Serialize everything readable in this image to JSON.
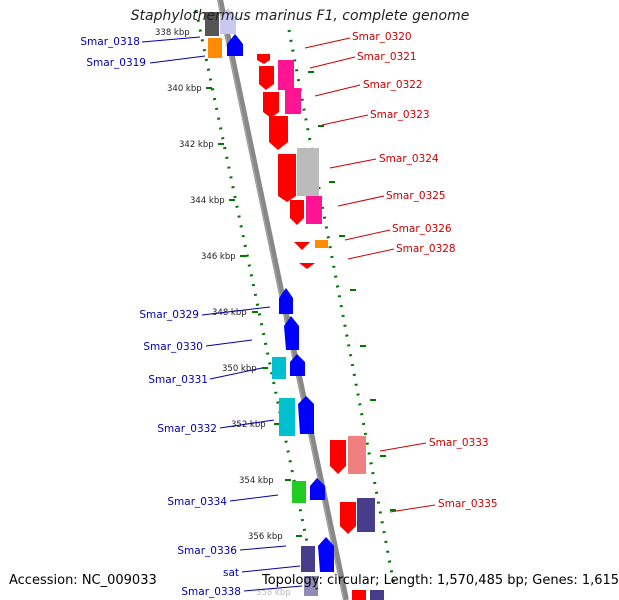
{
  "title": "Staphylothermus marinus F1, complete genome",
  "footer": {
    "accession": "Accession: NC_009033",
    "summary": "Topology: circular; Length: 1,570,485 bp; Genes: 1,615"
  },
  "colors": {
    "red": "#ff0000",
    "magenta": "#ff1493",
    "orange": "#ff8c00",
    "grey": "#bbbbbb",
    "salmon": "#f08080",
    "blue": "#0000ff",
    "cyan": "#00c0d0",
    "green": "#22cc22",
    "slate": "#483d8b",
    "lightblue": "#c8c8f0",
    "darkgrey": "#555555",
    "backbone": "#888888",
    "ruler": "#007700",
    "label_forward": "#cc0000",
    "label_reverse": "#0000aa"
  },
  "ticks": [
    "338 kbp",
    "340 kbp",
    "342 kbp",
    "344 kbp",
    "346 kbp",
    "348 kbp",
    "350 kbp",
    "352 kbp",
    "354 kbp",
    "356 kbp",
    "358 kbp"
  ],
  "genes_forward": [
    {
      "label": "Smar_0320"
    },
    {
      "label": "Smar_0321"
    },
    {
      "label": "Smar_0322"
    },
    {
      "label": "Smar_0323"
    },
    {
      "label": "Smar_0324"
    },
    {
      "label": "Smar_0325"
    },
    {
      "label": "Smar_0326"
    },
    {
      "label": "Smar_0328"
    },
    {
      "label": "Smar_0333"
    },
    {
      "label": "Smar_0335"
    }
  ],
  "genes_reverse": [
    {
      "label": "Smar_0318"
    },
    {
      "label": "Smar_0319"
    },
    {
      "label": "Smar_0329"
    },
    {
      "label": "Smar_0330"
    },
    {
      "label": "Smar_0331"
    },
    {
      "label": "Smar_0332"
    },
    {
      "label": "Smar_0334"
    },
    {
      "label": "Smar_0336"
    },
    {
      "label": "sat"
    },
    {
      "label": "Smar_0338"
    }
  ]
}
